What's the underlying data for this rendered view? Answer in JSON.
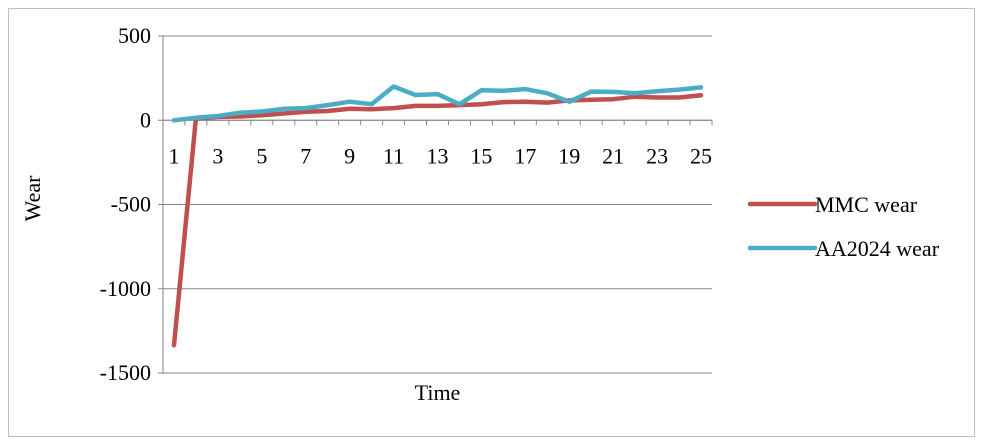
{
  "chart_data": {
    "type": "line",
    "title": "",
    "xlabel": "Time",
    "ylabel": "Wear",
    "x": [
      1,
      2,
      3,
      4,
      5,
      6,
      7,
      8,
      9,
      10,
      11,
      12,
      13,
      14,
      15,
      16,
      17,
      18,
      19,
      20,
      21,
      22,
      23,
      24,
      25
    ],
    "x_tick_labels": [
      "1",
      "3",
      "5",
      "7",
      "9",
      "11",
      "13",
      "15",
      "17",
      "19",
      "21",
      "23",
      "25"
    ],
    "y_tick_labels": [
      "500",
      "0",
      "-500",
      "-1000",
      "-1500"
    ],
    "ylim": [
      -1500,
      500
    ],
    "y_ticks": [
      500,
      0,
      -500,
      -1000,
      -1500
    ],
    "grid": true,
    "legend_position": "right",
    "series": [
      {
        "name": "MMC wear",
        "color": "#c0504d",
        "values": [
          -1335,
          10,
          20,
          22,
          30,
          40,
          50,
          55,
          68,
          65,
          72,
          85,
          85,
          90,
          95,
          108,
          110,
          105,
          118,
          122,
          125,
          140,
          135,
          135,
          148
        ]
      },
      {
        "name": "AA2024 wear",
        "color": "#4bacc6",
        "values": [
          0,
          15,
          25,
          45,
          52,
          68,
          72,
          90,
          110,
          95,
          200,
          150,
          155,
          95,
          178,
          175,
          185,
          160,
          110,
          170,
          168,
          160,
          172,
          182,
          195
        ]
      }
    ]
  }
}
